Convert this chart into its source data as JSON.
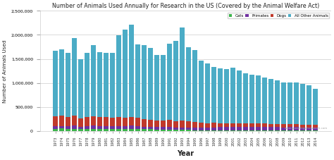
{
  "title": "Number of Animals Used Annually for Research in the US (Covered by the Animal Welfare Act)",
  "xlabel": "Year",
  "ylabel": "Number of Animals Used",
  "years": [
    1973,
    1974,
    1975,
    1976,
    1977,
    1978,
    1979,
    1980,
    1981,
    1982,
    1983,
    1984,
    1985,
    1986,
    1987,
    1988,
    1989,
    1990,
    1991,
    1992,
    1993,
    1994,
    1995,
    1996,
    1997,
    1998,
    1999,
    2000,
    2001,
    2002,
    2003,
    2004,
    2005,
    2006,
    2007,
    2008,
    2009,
    2010,
    2011,
    2012,
    2013,
    2014
  ],
  "cats": [
    50000,
    55000,
    50000,
    52000,
    40000,
    45000,
    50000,
    48000,
    46000,
    44000,
    44000,
    45000,
    48000,
    46000,
    42000,
    40000,
    36000,
    32000,
    30000,
    28000,
    27000,
    24000,
    22000,
    20000,
    18000,
    19000,
    20000,
    19000,
    18000,
    18000,
    17000,
    17000,
    17000,
    16000,
    15000,
    14000,
    13000,
    13000,
    13000,
    13000,
    12000,
    12000
  ],
  "primates": [
    55000,
    55000,
    50000,
    60000,
    52000,
    58000,
    62000,
    60000,
    60000,
    58000,
    60000,
    62000,
    65000,
    62000,
    55000,
    52000,
    50000,
    52000,
    55000,
    53000,
    55000,
    55000,
    57000,
    58000,
    60000,
    62000,
    65000,
    65000,
    65000,
    68000,
    70000,
    68000,
    70000,
    70000,
    70000,
    72000,
    68000,
    70000,
    70000,
    68000,
    65000,
    60000
  ],
  "dogs": [
    200000,
    210000,
    190000,
    215000,
    170000,
    190000,
    200000,
    190000,
    185000,
    180000,
    185000,
    180000,
    185000,
    165000,
    155000,
    150000,
    140000,
    135000,
    145000,
    130000,
    145000,
    130000,
    115000,
    105000,
    90000,
    90000,
    85000,
    82000,
    80000,
    78000,
    75000,
    74000,
    73000,
    72000,
    68000,
    65000,
    62000,
    60000,
    62000,
    60000,
    58000,
    55000
  ],
  "others": [
    1360000,
    1380000,
    1330000,
    1610000,
    1240000,
    1330000,
    1480000,
    1350000,
    1330000,
    1350000,
    1700000,
    1820000,
    1910000,
    1530000,
    1540000,
    1490000,
    1360000,
    1370000,
    1580000,
    1670000,
    1920000,
    1540000,
    1490000,
    1280000,
    1240000,
    1170000,
    1135000,
    1120000,
    1160000,
    1090000,
    1040000,
    1020000,
    1000000,
    960000,
    930000,
    900000,
    865000,
    870000,
    860000,
    845000,
    820000,
    760000
  ],
  "color_cats": "#3cb44b",
  "color_primates": "#7030a0",
  "color_dogs": "#c0392b",
  "color_others": "#4bacc6",
  "background": "#ffffff",
  "plot_bg": "#ffffff",
  "ylim": [
    0,
    2500000
  ],
  "yticks": [
    0,
    500000,
    1000000,
    1500000,
    2000000,
    2500000
  ],
  "legend_labels": [
    "Cats",
    "Primates",
    "Dogs",
    "All Other Animals"
  ],
  "watermark": "www.speakingofresearch.com"
}
